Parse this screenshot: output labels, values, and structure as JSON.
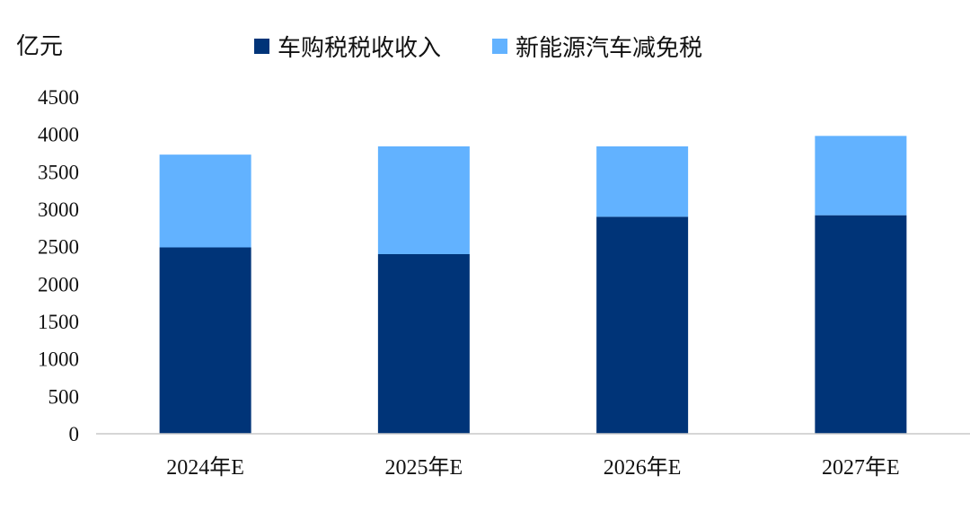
{
  "chart_data": {
    "type": "bar",
    "stacked": true,
    "unit_label": "亿元",
    "categories": [
      "2024年E",
      "2025年E",
      "2026年E",
      "2027年E"
    ],
    "series": [
      {
        "name": "车购税税收收入",
        "color": "#003478",
        "values": [
          2490,
          2400,
          2900,
          2920
        ]
      },
      {
        "name": "新能源汽车减免税",
        "color": "#62B2FF",
        "values": [
          1240,
          1440,
          940,
          1060
        ]
      }
    ],
    "ylim": [
      0,
      4500
    ],
    "yticks": [
      0,
      500,
      1000,
      1500,
      2000,
      2500,
      3000,
      3500,
      4000,
      4500
    ],
    "legend_position": "top",
    "grid": false
  }
}
